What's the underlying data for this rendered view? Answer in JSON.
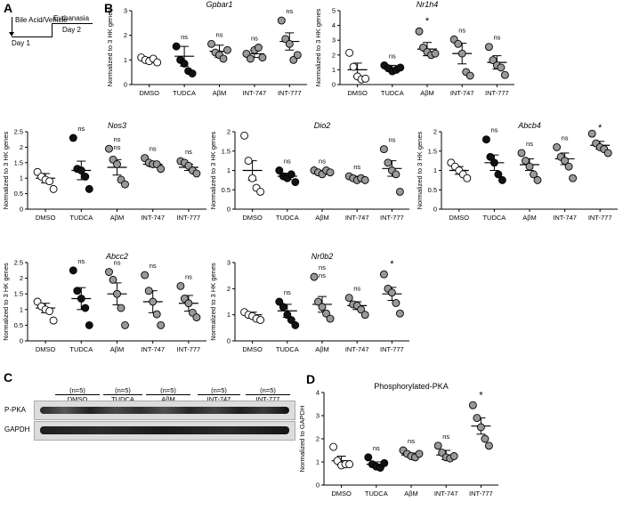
{
  "panels": {
    "a": "A",
    "b": "B",
    "c": "C",
    "d": "D"
  },
  "timeline": {
    "treatment": "Bile Acid/Vehicle",
    "day1": "Day 1",
    "euthanasia": "Euthanasia",
    "day2": "Day 2"
  },
  "blot": {
    "bands": [
      "P-PKA",
      "GAPDH"
    ],
    "groups": [
      {
        "n": "(n=5)",
        "name": "DMSO"
      },
      {
        "n": "(n=5)",
        "name": "TUDCA"
      },
      {
        "n": "(n=5)",
        "name": "AβM"
      },
      {
        "n": "(n=5)",
        "name": "INT-747"
      },
      {
        "n": "(n=5)",
        "name": "INT-777"
      }
    ]
  },
  "chart_data": [
    {
      "type": "scatter",
      "title": "Gpbar1",
      "ylabel": "Normalized to 3 HK genes",
      "categories": [
        "DMSO",
        "TUDCA",
        "AβM",
        "INT-747",
        "INT-777"
      ],
      "ylim": [
        0,
        3
      ],
      "yticks": [
        0,
        1,
        2,
        3
      ],
      "fills": [
        "#ffffff",
        "#111111",
        "#999999",
        "#999999",
        "#999999"
      ],
      "annotations": [
        "",
        "ns",
        "ns",
        "ns",
        "ns"
      ],
      "means": [
        1.0,
        1.15,
        1.35,
        1.25,
        1.75
      ],
      "sems": [
        0.1,
        0.4,
        0.25,
        0.15,
        0.35
      ],
      "points": [
        [
          1.1,
          1.0,
          0.95,
          1.05,
          0.9
        ],
        [
          1.55,
          1.0,
          0.85,
          0.55,
          0.45
        ],
        [
          1.65,
          1.3,
          1.2,
          1.05,
          1.4
        ],
        [
          1.25,
          1.05,
          1.4,
          1.5,
          1.1
        ],
        [
          2.6,
          1.85,
          1.65,
          1.0,
          1.2
        ]
      ]
    },
    {
      "type": "scatter",
      "title": "Nr1h4",
      "ylabel": "Normalized to 3 HK genes",
      "categories": [
        "DMSO",
        "TUDCA",
        "AβM",
        "INT-747",
        "INT-777"
      ],
      "ylim": [
        0,
        5
      ],
      "yticks": [
        0,
        1,
        2,
        3,
        4,
        5
      ],
      "fills": [
        "#ffffff",
        "#111111",
        "#999999",
        "#999999",
        "#999999"
      ],
      "annotations": [
        "",
        "ns",
        "*",
        "ns",
        "ns"
      ],
      "means": [
        1.0,
        1.1,
        2.4,
        2.1,
        1.5
      ],
      "sems": [
        0.45,
        0.2,
        0.45,
        0.7,
        0.45
      ],
      "points": [
        [
          2.15,
          1.2,
          0.55,
          0.35,
          0.4
        ],
        [
          1.3,
          1.1,
          0.9,
          1.0,
          1.15
        ],
        [
          3.6,
          2.5,
          2.2,
          2.0,
          2.1
        ],
        [
          3.05,
          2.75,
          2.1,
          0.85,
          0.6
        ],
        [
          2.55,
          1.65,
          1.3,
          1.15,
          0.65
        ]
      ]
    },
    {
      "type": "scatter",
      "title": "Nos3",
      "ylabel": "Normalized to 3 HK genes",
      "categories": [
        "DMSO",
        "TUDCA",
        "AβM",
        "INT-747",
        "INT-777"
      ],
      "ylim": [
        0,
        2.5
      ],
      "yticks": [
        0,
        0.5,
        1.0,
        1.5,
        2.0,
        2.5
      ],
      "fills": [
        "#ffffff",
        "#111111",
        "#999999",
        "#999999",
        "#999999"
      ],
      "annotations": [
        "",
        "ns",
        "ns",
        "ns",
        "ns"
      ],
      "annotations2": [
        "",
        "",
        "ns",
        "",
        ""
      ],
      "means": [
        1.0,
        1.25,
        1.35,
        1.45,
        1.35
      ],
      "sems": [
        0.15,
        0.3,
        0.25,
        0.08,
        0.1
      ],
      "points": [
        [
          1.2,
          1.05,
          0.95,
          0.9,
          0.65
        ],
        [
          2.3,
          1.3,
          1.25,
          1.05,
          0.65
        ],
        [
          1.95,
          1.6,
          1.45,
          0.95,
          0.8
        ],
        [
          1.65,
          1.5,
          1.45,
          1.45,
          1.3
        ],
        [
          1.55,
          1.5,
          1.4,
          1.25,
          1.15
        ]
      ]
    },
    {
      "type": "scatter",
      "title": "Dio2",
      "ylabel": "Normalized to 3 HK genes",
      "categories": [
        "DMSO",
        "TUDCA",
        "AβM",
        "INT-747",
        "INT-777"
      ],
      "ylim": [
        0,
        2.0
      ],
      "yticks": [
        0,
        0.5,
        1.0,
        1.5,
        2.0
      ],
      "fills": [
        "#ffffff",
        "#111111",
        "#999999",
        "#999999",
        "#999999"
      ],
      "annotations": [
        "",
        "ns",
        "ns",
        "ns",
        "ns"
      ],
      "means": [
        1.0,
        0.85,
        0.95,
        0.8,
        1.05
      ],
      "sems": [
        0.25,
        0.08,
        0.05,
        0.05,
        0.2
      ],
      "points": [
        [
          1.9,
          1.25,
          0.8,
          0.55,
          0.45
        ],
        [
          1.0,
          0.85,
          0.8,
          0.9,
          0.7
        ],
        [
          1.0,
          0.95,
          0.9,
          1.0,
          0.95
        ],
        [
          0.85,
          0.8,
          0.75,
          0.8,
          0.75
        ],
        [
          1.55,
          1.2,
          1.0,
          0.9,
          0.45
        ]
      ]
    },
    {
      "type": "scatter",
      "title": "Abcb4",
      "ylabel": "Normalized to 3 HK genes",
      "categories": [
        "DMSO",
        "TUDCA",
        "AβM",
        "INT-747",
        "INT-777"
      ],
      "ylim": [
        0,
        2.0
      ],
      "yticks": [
        0,
        0.5,
        1.0,
        1.5,
        2.0
      ],
      "fills": [
        "#ffffff",
        "#111111",
        "#999999",
        "#999999",
        "#999999"
      ],
      "annotations": [
        "",
        "ns",
        "ns",
        "ns",
        "*"
      ],
      "means": [
        1.0,
        1.2,
        1.15,
        1.3,
        1.65
      ],
      "sems": [
        0.1,
        0.2,
        0.15,
        0.15,
        0.1
      ],
      "points": [
        [
          1.2,
          1.1,
          1.0,
          0.9,
          0.8
        ],
        [
          1.8,
          1.35,
          1.2,
          0.9,
          0.75
        ],
        [
          1.45,
          1.25,
          1.1,
          0.9,
          0.75
        ],
        [
          1.6,
          1.35,
          1.25,
          1.1,
          0.8
        ],
        [
          1.95,
          1.7,
          1.6,
          1.55,
          1.45
        ]
      ]
    },
    {
      "type": "scatter",
      "title": "Abcc2",
      "ylabel": "Normalized to 3 HK genes",
      "categories": [
        "DMSO",
        "TUDCA",
        "AβM",
        "INT-747",
        "INT-777"
      ],
      "ylim": [
        0,
        2.5
      ],
      "yticks": [
        0,
        0.5,
        1.0,
        1.5,
        2.0,
        2.5
      ],
      "fills": [
        "#ffffff",
        "#111111",
        "#999999",
        "#999999",
        "#999999"
      ],
      "annotations": [
        "",
        "ns",
        "ns",
        "ns",
        "ns"
      ],
      "means": [
        1.05,
        1.35,
        1.5,
        1.25,
        1.2
      ],
      "sems": [
        0.15,
        0.35,
        0.35,
        0.35,
        0.25
      ],
      "points": [
        [
          1.25,
          1.1,
          1.0,
          0.95,
          0.65
        ],
        [
          2.25,
          1.6,
          1.35,
          1.05,
          0.5
        ],
        [
          2.2,
          1.95,
          1.5,
          1.05,
          0.5
        ],
        [
          2.1,
          1.6,
          1.25,
          0.85,
          0.5
        ],
        [
          1.75,
          1.35,
          1.2,
          0.9,
          0.75
        ]
      ]
    },
    {
      "type": "scatter",
      "title": "Nr0b2",
      "ylabel": "Normalized to 3 HK genes",
      "categories": [
        "DMSO",
        "TUDCA",
        "AβM",
        "INT-747",
        "INT-777"
      ],
      "ylim": [
        0,
        3
      ],
      "yticks": [
        0,
        1,
        2,
        3
      ],
      "fills": [
        "#ffffff",
        "#111111",
        "#999999",
        "#999999",
        "#999999"
      ],
      "annotations": [
        "",
        "ns",
        "ns",
        "ns",
        "*"
      ],
      "annotations2": [
        "",
        "",
        "ns",
        "",
        ""
      ],
      "means": [
        1.0,
        1.15,
        1.4,
        1.35,
        1.8
      ],
      "sems": [
        0.1,
        0.25,
        0.3,
        0.15,
        0.25
      ],
      "points": [
        [
          1.1,
          1.0,
          0.95,
          0.85,
          0.8
        ],
        [
          1.5,
          1.3,
          1.0,
          0.8,
          0.6
        ],
        [
          2.45,
          1.5,
          1.3,
          1.05,
          0.85
        ],
        [
          1.65,
          1.4,
          1.35,
          1.2,
          1.0
        ],
        [
          2.55,
          2.0,
          1.85,
          1.45,
          1.05
        ]
      ]
    },
    {
      "type": "scatter",
      "title": "Phosphorylated-PKA",
      "ylabel": "Normalized to GAPDH",
      "categories": [
        "DMSO",
        "TUDCA",
        "AβM",
        "INT-747",
        "INT-777"
      ],
      "ylim": [
        0,
        4
      ],
      "yticks": [
        0,
        1,
        2,
        3,
        4
      ],
      "fills": [
        "#ffffff",
        "#111111",
        "#999999",
        "#999999",
        "#999999"
      ],
      "annotations": [
        "",
        "ns",
        "ns",
        "ns",
        "*"
      ],
      "means": [
        1.05,
        0.9,
        1.3,
        1.3,
        2.55
      ],
      "sems": [
        0.2,
        0.1,
        0.08,
        0.2,
        0.35
      ],
      "points": [
        [
          1.65,
          1.05,
          0.85,
          0.9,
          0.9
        ],
        [
          1.2,
          0.9,
          0.8,
          0.75,
          0.95
        ],
        [
          1.5,
          1.35,
          1.25,
          1.2,
          1.35
        ],
        [
          1.7,
          1.4,
          1.2,
          1.15,
          1.25
        ],
        [
          3.45,
          2.9,
          2.5,
          2.0,
          1.7
        ]
      ]
    }
  ]
}
